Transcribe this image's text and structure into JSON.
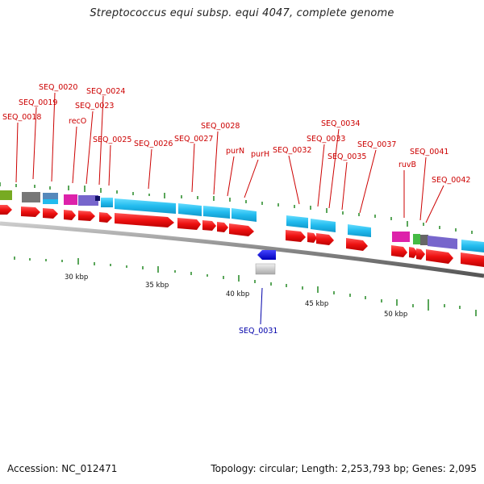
{
  "title": "Streptococcus equi subsp. equi 4047, complete genome",
  "footer": {
    "accession": "Accession: NC_012471",
    "summary": "Topology: circular; Length: 2,253,793 bp; Genes: 2,095"
  },
  "axis_ticks": [
    "30 kbp",
    "35 kbp",
    "40 kbp",
    "45 kbp",
    "50 kbp"
  ],
  "gene_labels": [
    {
      "text": "SEQ_0018",
      "color": "#cc0000"
    },
    {
      "text": "SEQ_0019",
      "color": "#cc0000"
    },
    {
      "text": "SEQ_0020",
      "color": "#cc0000"
    },
    {
      "text": "recO",
      "color": "#cc0000"
    },
    {
      "text": "SEQ_0023",
      "color": "#cc0000"
    },
    {
      "text": "SEQ_0024",
      "color": "#cc0000"
    },
    {
      "text": "SEQ_0025",
      "color": "#cc0000"
    },
    {
      "text": "SEQ_0026",
      "color": "#cc0000"
    },
    {
      "text": "SEQ_0027",
      "color": "#cc0000"
    },
    {
      "text": "SEQ_0028",
      "color": "#cc0000"
    },
    {
      "text": "purN",
      "color": "#cc0000"
    },
    {
      "text": "purH",
      "color": "#cc0000"
    },
    {
      "text": "SEQ_0032",
      "color": "#cc0000"
    },
    {
      "text": "SEQ_0033",
      "color": "#cc0000"
    },
    {
      "text": "SEQ_0034",
      "color": "#cc0000"
    },
    {
      "text": "SEQ_0035",
      "color": "#cc0000"
    },
    {
      "text": "SEQ_0037",
      "color": "#cc0000"
    },
    {
      "text": "ruvB",
      "color": "#cc0000"
    },
    {
      "text": "SEQ_0041",
      "color": "#cc0000"
    },
    {
      "text": "SEQ_0042",
      "color": "#cc0000"
    },
    {
      "text": "SEQ_0031",
      "color": "#0000aa"
    }
  ],
  "colors": {
    "forward_cds": "#ee1111",
    "reverse_cds": "#0000dd",
    "cog_cyan": "#22bbee",
    "backbone": "#888888",
    "tick_green": "#228822"
  }
}
